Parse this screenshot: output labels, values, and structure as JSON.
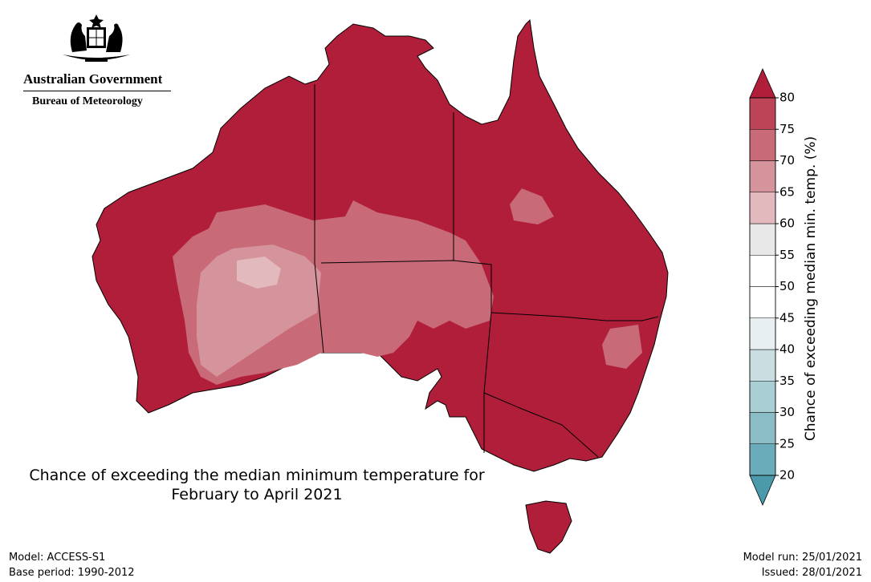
{
  "logo": {
    "line1": "Australian Government",
    "line2": "Bureau of Meteorology"
  },
  "title": {
    "line1": "Chance of exceeding the median minimum temperature for",
    "line2": "February to April 2021"
  },
  "footer": {
    "model": "Model: ACCESS-S1",
    "base_period": "Base period: 1990-2012",
    "model_run": "Model run: 25/01/2021",
    "issued": "Issued: 28/01/2021"
  },
  "colorbar": {
    "label": "Chance of exceeding median min. temp. (%)",
    "ticks": [
      20,
      25,
      30,
      35,
      40,
      45,
      50,
      55,
      60,
      65,
      70,
      75,
      80
    ],
    "under_color": "#4b9aab",
    "colors": [
      "#6aacb9",
      "#8bbdc6",
      "#a9ced4",
      "#cadde1",
      "#e7eff1",
      "#ffffff",
      "#ffffff",
      "#e8e8e8",
      "#e2b9bd",
      "#d5939b",
      "#c86a77",
      "#bd4456"
    ],
    "over_color": "#b01e3a"
  }
}
